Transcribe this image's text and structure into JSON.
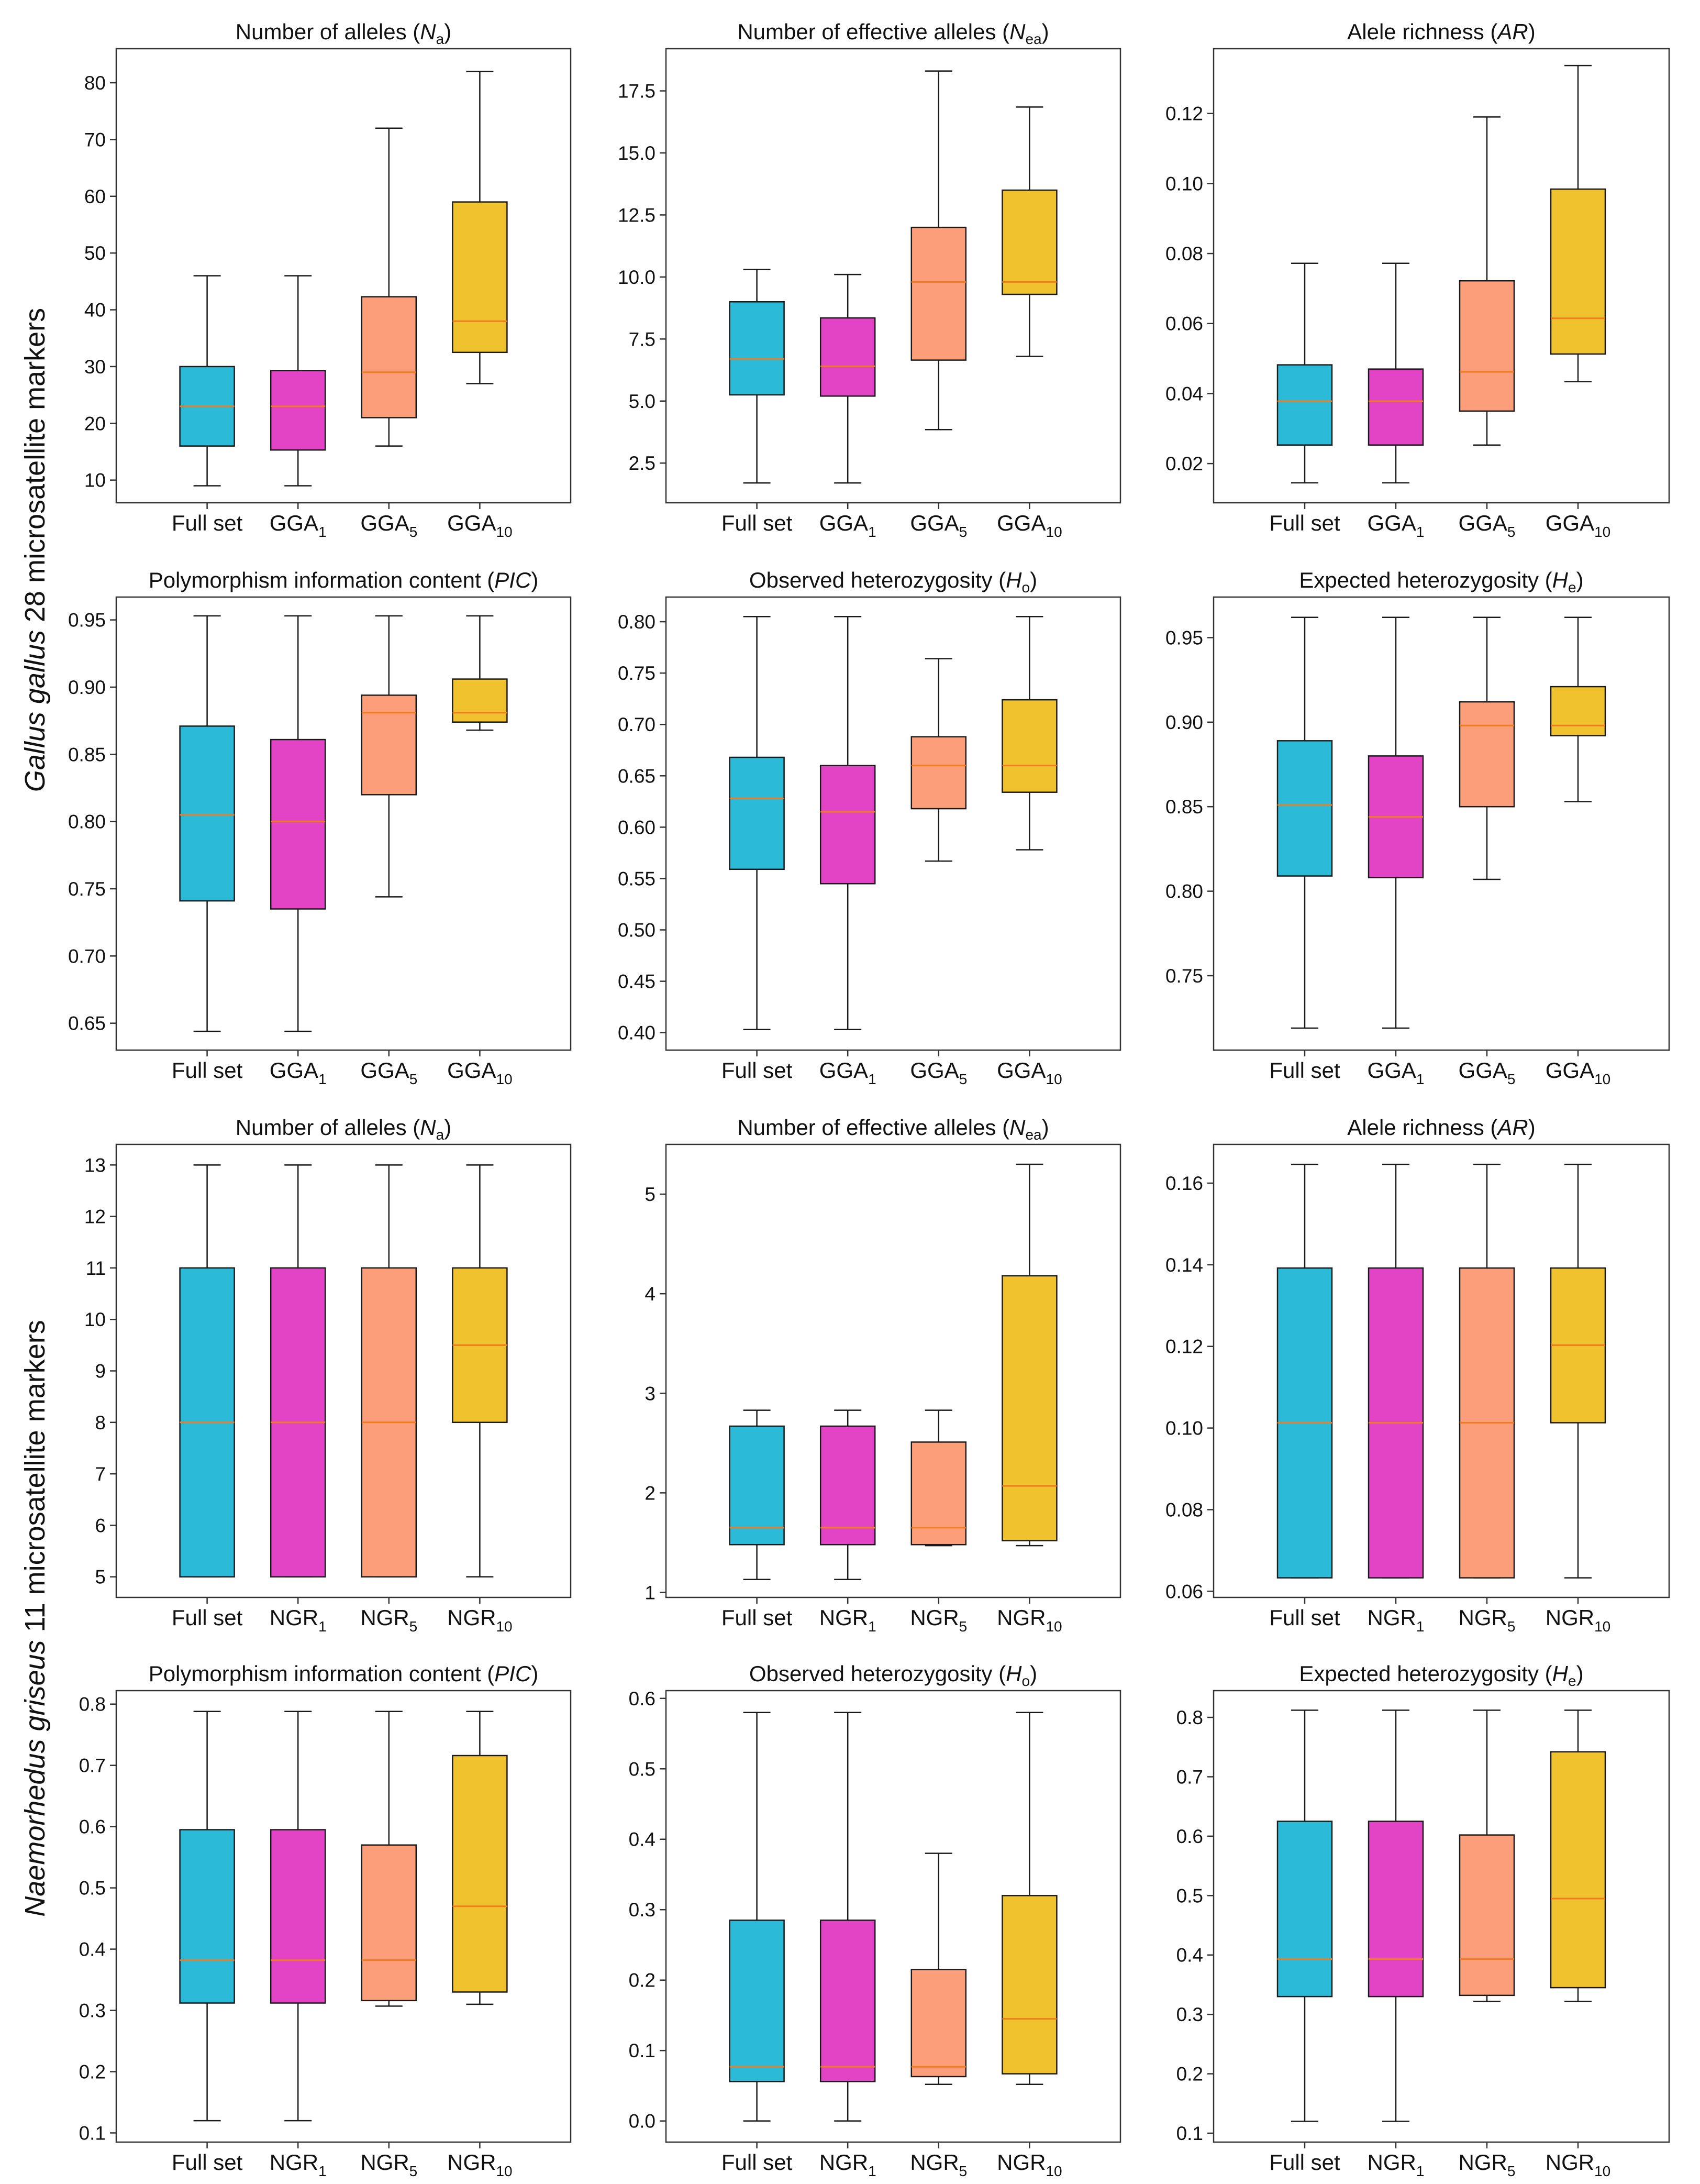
{
  "figure": {
    "row_labels": [
      {
        "species": "Gallus gallus",
        "rest": " 28 microsatellite markers"
      },
      {
        "species": "Naemorhedus griseus",
        "rest": " 11 microsatellite markers"
      }
    ]
  },
  "colors": {
    "box_fills": [
      "#2bbbd8",
      "#e344c5",
      "#fc9e7a",
      "#f0c22e"
    ],
    "median": "#f07c1f",
    "line": "#1a1a1a",
    "frame": "#333333"
  },
  "chart_data": [
    {
      "type": "box",
      "title": {
        "pre": "Number of alleles (",
        "sym": "N",
        "sub": "a",
        "post": ")"
      },
      "categories": [
        {
          "base": "Full set",
          "sub": ""
        },
        {
          "base": "GGA",
          "sub": "1"
        },
        {
          "base": "GGA",
          "sub": "5"
        },
        {
          "base": "GGA",
          "sub": "10"
        }
      ],
      "ylim": [
        6,
        86
      ],
      "yticks": [
        10,
        20,
        30,
        40,
        50,
        60,
        70,
        80
      ],
      "tick_labels": [
        "10",
        "20",
        "30",
        "40",
        "50",
        "60",
        "70",
        "80"
      ],
      "boxes": [
        {
          "whislo": 9,
          "q1": 16,
          "med": 23,
          "q3": 30,
          "whishi": 46
        },
        {
          "whislo": 9,
          "q1": 15.3,
          "med": 23,
          "q3": 29.3,
          "whishi": 46
        },
        {
          "whislo": 16,
          "q1": 21,
          "med": 29,
          "q3": 42.3,
          "whishi": 72
        },
        {
          "whislo": 27,
          "q1": 32.5,
          "med": 38,
          "q3": 59,
          "whishi": 82
        }
      ]
    },
    {
      "type": "box",
      "title": {
        "pre": "Number of effective alleles (",
        "sym": "N",
        "sub": "ea",
        "post": ")"
      },
      "categories": [
        {
          "base": "Full set",
          "sub": ""
        },
        {
          "base": "GGA",
          "sub": "1"
        },
        {
          "base": "GGA",
          "sub": "5"
        },
        {
          "base": "GGA",
          "sub": "10"
        }
      ],
      "ylim": [
        0.9,
        19.2
      ],
      "yticks": [
        2.5,
        5.0,
        7.5,
        10.0,
        12.5,
        15.0,
        17.5
      ],
      "tick_labels": [
        "2.5",
        "5.0",
        "7.5",
        "10.0",
        "12.5",
        "15.0",
        "17.5"
      ],
      "boxes": [
        {
          "whislo": 1.7,
          "q1": 5.25,
          "med": 6.7,
          "q3": 9.0,
          "whishi": 10.3
        },
        {
          "whislo": 1.7,
          "q1": 5.2,
          "med": 6.4,
          "q3": 8.35,
          "whishi": 10.1
        },
        {
          "whislo": 3.85,
          "q1": 6.65,
          "med": 9.8,
          "q3": 12.0,
          "whishi": 18.3
        },
        {
          "whislo": 6.8,
          "q1": 9.3,
          "med": 9.8,
          "q3": 13.5,
          "whishi": 16.85
        }
      ]
    },
    {
      "type": "box",
      "title": {
        "pre": "Alele richness (",
        "sym": "AR",
        "sub": "",
        "post": ")"
      },
      "categories": [
        {
          "base": "Full set",
          "sub": ""
        },
        {
          "base": "GGA",
          "sub": "1"
        },
        {
          "base": "GGA",
          "sub": "5"
        },
        {
          "base": "GGA",
          "sub": "10"
        }
      ],
      "ylim": [
        0.0088,
        0.1385
      ],
      "yticks": [
        0.02,
        0.04,
        0.06,
        0.08,
        0.1,
        0.12
      ],
      "tick_labels": [
        "0.02",
        "0.04",
        "0.06",
        "0.08",
        "0.10",
        "0.12"
      ],
      "boxes": [
        {
          "whislo": 0.0145,
          "q1": 0.0253,
          "med": 0.0378,
          "q3": 0.0482,
          "whishi": 0.0772
        },
        {
          "whislo": 0.0145,
          "q1": 0.0253,
          "med": 0.0378,
          "q3": 0.047,
          "whishi": 0.0772
        },
        {
          "whislo": 0.0253,
          "q1": 0.035,
          "med": 0.0462,
          "q3": 0.0722,
          "whishi": 0.119
        },
        {
          "whislo": 0.0434,
          "q1": 0.0513,
          "med": 0.0615,
          "q3": 0.0984,
          "whishi": 0.1337
        }
      ]
    },
    {
      "type": "box",
      "title": {
        "pre": "Polymorphism information content (",
        "sym": "PIC",
        "sub": "",
        "post": ")"
      },
      "categories": [
        {
          "base": "Full set",
          "sub": ""
        },
        {
          "base": "GGA",
          "sub": "1"
        },
        {
          "base": "GGA",
          "sub": "5"
        },
        {
          "base": "GGA",
          "sub": "10"
        }
      ],
      "ylim": [
        0.63,
        0.967
      ],
      "yticks": [
        0.65,
        0.7,
        0.75,
        0.8,
        0.85,
        0.9,
        0.95
      ],
      "tick_labels": [
        "0.65",
        "0.70",
        "0.75",
        "0.80",
        "0.85",
        "0.90",
        "0.95"
      ],
      "boxes": [
        {
          "whislo": 0.644,
          "q1": 0.741,
          "med": 0.805,
          "q3": 0.871,
          "whishi": 0.953
        },
        {
          "whislo": 0.644,
          "q1": 0.735,
          "med": 0.8,
          "q3": 0.861,
          "whishi": 0.953
        },
        {
          "whislo": 0.744,
          "q1": 0.82,
          "med": 0.881,
          "q3": 0.894,
          "whishi": 0.953
        },
        {
          "whislo": 0.868,
          "q1": 0.874,
          "med": 0.881,
          "q3": 0.906,
          "whishi": 0.953
        }
      ]
    },
    {
      "type": "box",
      "title": {
        "pre": "Observed heterozygosity (",
        "sym": "H",
        "sub": "o",
        "post": ")"
      },
      "categories": [
        {
          "base": "Full set",
          "sub": ""
        },
        {
          "base": "GGA",
          "sub": "1"
        },
        {
          "base": "GGA",
          "sub": "5"
        },
        {
          "base": "GGA",
          "sub": "10"
        }
      ],
      "ylim": [
        0.383,
        0.824
      ],
      "yticks": [
        0.4,
        0.45,
        0.5,
        0.55,
        0.6,
        0.65,
        0.7,
        0.75,
        0.8
      ],
      "tick_labels": [
        "0.40",
        "0.45",
        "0.50",
        "0.55",
        "0.60",
        "0.65",
        "0.70",
        "0.75",
        "0.80"
      ],
      "boxes": [
        {
          "whislo": 0.403,
          "q1": 0.559,
          "med": 0.628,
          "q3": 0.668,
          "whishi": 0.805
        },
        {
          "whislo": 0.403,
          "q1": 0.545,
          "med": 0.615,
          "q3": 0.66,
          "whishi": 0.805
        },
        {
          "whislo": 0.567,
          "q1": 0.618,
          "med": 0.66,
          "q3": 0.688,
          "whishi": 0.764
        },
        {
          "whislo": 0.578,
          "q1": 0.634,
          "med": 0.66,
          "q3": 0.724,
          "whishi": 0.805
        }
      ]
    },
    {
      "type": "box",
      "title": {
        "pre": "Expected heterozygosity (",
        "sym": "H",
        "sub": "e",
        "post": ")"
      },
      "categories": [
        {
          "base": "Full set",
          "sub": ""
        },
        {
          "base": "GGA",
          "sub": "1"
        },
        {
          "base": "GGA",
          "sub": "5"
        },
        {
          "base": "GGA",
          "sub": "10"
        }
      ],
      "ylim": [
        0.706,
        0.974
      ],
      "yticks": [
        0.75,
        0.8,
        0.85,
        0.9,
        0.95
      ],
      "tick_labels": [
        "0.75",
        "0.80",
        "0.85",
        "0.90",
        "0.95"
      ],
      "boxes": [
        {
          "whislo": 0.719,
          "q1": 0.809,
          "med": 0.851,
          "q3": 0.889,
          "whishi": 0.962
        },
        {
          "whislo": 0.719,
          "q1": 0.808,
          "med": 0.844,
          "q3": 0.88,
          "whishi": 0.962
        },
        {
          "whislo": 0.807,
          "q1": 0.85,
          "med": 0.898,
          "q3": 0.912,
          "whishi": 0.962
        },
        {
          "whislo": 0.853,
          "q1": 0.892,
          "med": 0.898,
          "q3": 0.921,
          "whishi": 0.962
        }
      ]
    },
    {
      "type": "box",
      "title": {
        "pre": "Number of alleles (",
        "sym": "N",
        "sub": "a",
        "post": ")"
      },
      "categories": [
        {
          "base": "Full set",
          "sub": ""
        },
        {
          "base": "NGR",
          "sub": "1"
        },
        {
          "base": "NGR",
          "sub": "5"
        },
        {
          "base": "NGR",
          "sub": "10"
        }
      ],
      "ylim": [
        4.6,
        13.4
      ],
      "yticks": [
        5,
        6,
        7,
        8,
        9,
        10,
        11,
        12,
        13
      ],
      "tick_labels": [
        "5",
        "6",
        "7",
        "8",
        "9",
        "10",
        "11",
        "12",
        "13"
      ],
      "boxes": [
        {
          "whislo": 5,
          "q1": 5,
          "med": 8,
          "q3": 11,
          "whishi": 13
        },
        {
          "whislo": 5,
          "q1": 5,
          "med": 8,
          "q3": 11,
          "whishi": 13
        },
        {
          "whislo": 5,
          "q1": 5,
          "med": 8,
          "q3": 11,
          "whishi": 13
        },
        {
          "whislo": 5,
          "q1": 8,
          "med": 9.5,
          "q3": 11,
          "whishi": 13
        }
      ]
    },
    {
      "type": "box",
      "title": {
        "pre": "Number of effective alleles (",
        "sym": "N",
        "sub": "ea",
        "post": ")"
      },
      "categories": [
        {
          "base": "Full set",
          "sub": ""
        },
        {
          "base": "NGR",
          "sub": "1"
        },
        {
          "base": "NGR",
          "sub": "5"
        },
        {
          "base": "NGR",
          "sub": "10"
        }
      ],
      "ylim": [
        0.95,
        5.5
      ],
      "yticks": [
        1,
        2,
        3,
        4,
        5
      ],
      "tick_labels": [
        "1",
        "2",
        "3",
        "4",
        "5"
      ],
      "boxes": [
        {
          "whislo": 1.13,
          "q1": 1.48,
          "med": 1.65,
          "q3": 2.67,
          "whishi": 2.83
        },
        {
          "whislo": 1.13,
          "q1": 1.48,
          "med": 1.65,
          "q3": 2.67,
          "whishi": 2.83
        },
        {
          "whislo": 1.47,
          "q1": 1.48,
          "med": 1.65,
          "q3": 2.51,
          "whishi": 2.83
        },
        {
          "whislo": 1.47,
          "q1": 1.52,
          "med": 2.07,
          "q3": 4.18,
          "whishi": 5.3
        }
      ]
    },
    {
      "type": "box",
      "title": {
        "pre": "Alele richness (",
        "sym": "AR",
        "sub": "",
        "post": ")"
      },
      "categories": [
        {
          "base": "Full set",
          "sub": ""
        },
        {
          "base": "NGR",
          "sub": "1"
        },
        {
          "base": "NGR",
          "sub": "5"
        },
        {
          "base": "NGR",
          "sub": "10"
        }
      ],
      "ylim": [
        0.0585,
        0.1695
      ],
      "yticks": [
        0.06,
        0.08,
        0.1,
        0.12,
        0.14,
        0.16
      ],
      "tick_labels": [
        "0.06",
        "0.08",
        "0.10",
        "0.12",
        "0.14",
        "0.16"
      ],
      "boxes": [
        {
          "whislo": 0.0633,
          "q1": 0.0633,
          "med": 0.1013,
          "q3": 0.1392,
          "whishi": 0.1646
        },
        {
          "whislo": 0.0633,
          "q1": 0.0633,
          "med": 0.1013,
          "q3": 0.1392,
          "whishi": 0.1646
        },
        {
          "whislo": 0.0633,
          "q1": 0.0633,
          "med": 0.1013,
          "q3": 0.1392,
          "whishi": 0.1646
        },
        {
          "whislo": 0.0633,
          "q1": 0.1013,
          "med": 0.1203,
          "q3": 0.1392,
          "whishi": 0.1646
        }
      ]
    },
    {
      "type": "box",
      "title": {
        "pre": "Polymorphism information content (",
        "sym": "PIC",
        "sub": "",
        "post": ")"
      },
      "categories": [
        {
          "base": "Full set",
          "sub": ""
        },
        {
          "base": "NGR",
          "sub": "1"
        },
        {
          "base": "NGR",
          "sub": "5"
        },
        {
          "base": "NGR",
          "sub": "10"
        }
      ],
      "ylim": [
        0.085,
        0.822
      ],
      "yticks": [
        0.1,
        0.2,
        0.3,
        0.4,
        0.5,
        0.6,
        0.7,
        0.8
      ],
      "tick_labels": [
        "0.1",
        "0.2",
        "0.3",
        "0.4",
        "0.5",
        "0.6",
        "0.7",
        "0.8"
      ],
      "boxes": [
        {
          "whislo": 0.12,
          "q1": 0.312,
          "med": 0.382,
          "q3": 0.595,
          "whishi": 0.788
        },
        {
          "whislo": 0.12,
          "q1": 0.312,
          "med": 0.382,
          "q3": 0.595,
          "whishi": 0.788
        },
        {
          "whislo": 0.307,
          "q1": 0.316,
          "med": 0.382,
          "q3": 0.57,
          "whishi": 0.788
        },
        {
          "whislo": 0.31,
          "q1": 0.33,
          "med": 0.47,
          "q3": 0.716,
          "whishi": 0.788
        }
      ]
    },
    {
      "type": "box",
      "title": {
        "pre": "Observed heterozygosity (",
        "sym": "H",
        "sub": "o",
        "post": ")"
      },
      "categories": [
        {
          "base": "Full set",
          "sub": ""
        },
        {
          "base": "NGR",
          "sub": "1"
        },
        {
          "base": "NGR",
          "sub": "5"
        },
        {
          "base": "NGR",
          "sub": "10"
        }
      ],
      "ylim": [
        -0.03,
        0.611
      ],
      "yticks": [
        0.0,
        0.1,
        0.2,
        0.3,
        0.4,
        0.5,
        0.6
      ],
      "tick_labels": [
        "0.0",
        "0.1",
        "0.2",
        "0.3",
        "0.4",
        "0.5",
        "0.6"
      ],
      "boxes": [
        {
          "whislo": 0.0,
          "q1": 0.056,
          "med": 0.077,
          "q3": 0.285,
          "whishi": 0.58
        },
        {
          "whislo": 0.0,
          "q1": 0.056,
          "med": 0.077,
          "q3": 0.285,
          "whishi": 0.58
        },
        {
          "whislo": 0.052,
          "q1": 0.063,
          "med": 0.077,
          "q3": 0.215,
          "whishi": 0.38
        },
        {
          "whislo": 0.052,
          "q1": 0.067,
          "med": 0.145,
          "q3": 0.32,
          "whishi": 0.58
        }
      ]
    },
    {
      "type": "box",
      "title": {
        "pre": "Expected heterozygosity (",
        "sym": "H",
        "sub": "e",
        "post": ")"
      },
      "categories": [
        {
          "base": "Full set",
          "sub": ""
        },
        {
          "base": "NGR",
          "sub": "1"
        },
        {
          "base": "NGR",
          "sub": "5"
        },
        {
          "base": "NGR",
          "sub": "10"
        }
      ],
      "ylim": [
        0.085,
        0.845
      ],
      "yticks": [
        0.1,
        0.2,
        0.3,
        0.4,
        0.5,
        0.6,
        0.7,
        0.8
      ],
      "tick_labels": [
        "0.1",
        "0.2",
        "0.3",
        "0.4",
        "0.5",
        "0.6",
        "0.7",
        "0.8"
      ],
      "boxes": [
        {
          "whislo": 0.12,
          "q1": 0.33,
          "med": 0.393,
          "q3": 0.625,
          "whishi": 0.812
        },
        {
          "whislo": 0.12,
          "q1": 0.33,
          "med": 0.393,
          "q3": 0.625,
          "whishi": 0.812
        },
        {
          "whislo": 0.322,
          "q1": 0.332,
          "med": 0.393,
          "q3": 0.602,
          "whishi": 0.812
        },
        {
          "whislo": 0.322,
          "q1": 0.345,
          "med": 0.495,
          "q3": 0.742,
          "whishi": 0.812
        }
      ]
    }
  ]
}
